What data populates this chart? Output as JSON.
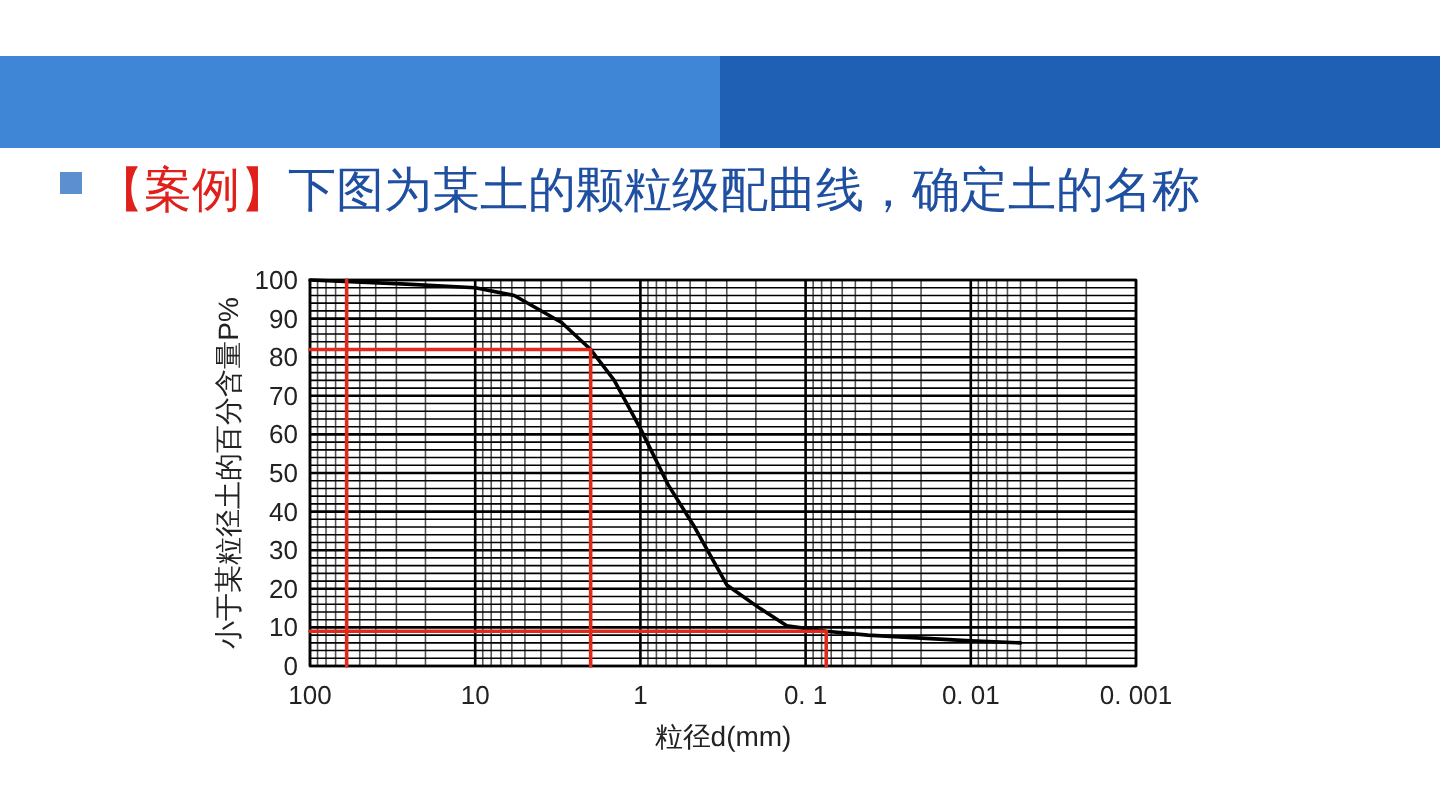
{
  "chart_data": {
    "type": "line",
    "title": "【案例】",
    "subtitle": "下图为某土的颗粒级配曲线，确定土的名称",
    "xlabel": "粒径d(mm)",
    "ylabel": "小于某粒径土的百分含量P%",
    "log": "x",
    "grid": true,
    "marker": "none",
    "line_style": "solid",
    "xlim": [
      100,
      0.001
    ],
    "ylim": [
      0,
      100
    ],
    "xticks": [
      100,
      10,
      1,
      {
        "value": 0.1,
        "label": "0. 1"
      },
      {
        "value": 0.01,
        "label": "0. 01"
      },
      {
        "value": 0.001,
        "label": "0. 001"
      }
    ],
    "yticks": [
      0,
      10,
      20,
      30,
      40,
      50,
      60,
      70,
      80,
      90,
      100
    ],
    "series": [
      {
        "color": "#000000",
        "x": [
          100,
          28,
          10,
          5.8,
          3,
          2,
          1.44,
          1,
          0.68,
          0.47,
          0.3,
          0.19,
          0.13,
          0.075,
          0.042,
          0.01,
          0.005
        ],
        "values": [
          100,
          99,
          98,
          96,
          89,
          82,
          74,
          61.5,
          47,
          36,
          21,
          15,
          10.4,
          9,
          8,
          6.5,
          6
        ]
      },
      {
        "color": "#e02a1c",
        "x": [
          60,
          60
        ],
        "values": [
          0,
          100
        ]
      },
      {
        "color": "#e02a1c",
        "x": [
          100,
          2,
          2
        ],
        "values": [
          82,
          82,
          0
        ]
      },
      {
        "color": "#e02a1c",
        "x": [
          100,
          0.075,
          0.075
        ],
        "values": [
          9,
          9,
          0
        ]
      }
    ]
  }
}
